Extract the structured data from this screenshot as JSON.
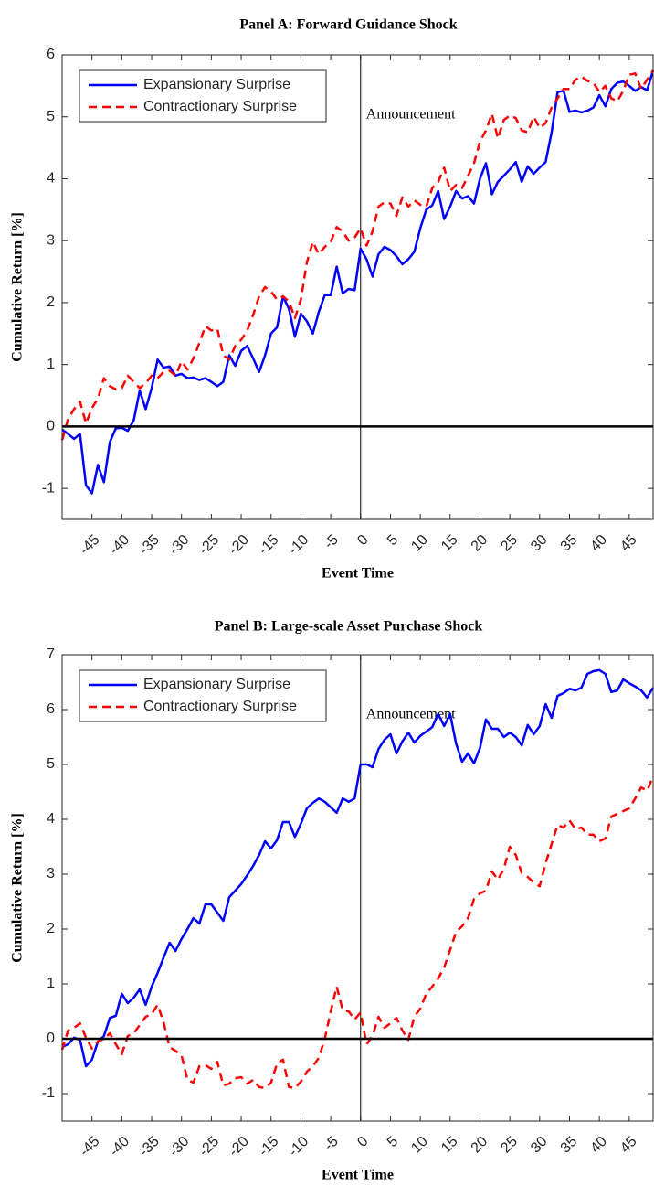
{
  "chart_data": [
    {
      "type": "line",
      "title": "Panel A: Forward Guidance Shock",
      "xlabel": "Event Time",
      "ylabel": "Cumulative Return [%]",
      "annotation": "Announcement",
      "vline_x": 0,
      "hline_y": 0,
      "legend": "upper left",
      "xlim": [
        -50,
        49
      ],
      "ylim": [
        -1.5,
        6
      ],
      "xticks": [
        -45,
        -40,
        -35,
        -30,
        -25,
        -20,
        -15,
        -10,
        -5,
        0,
        5,
        10,
        15,
        20,
        25,
        30,
        35,
        40,
        45
      ],
      "yticks": [
        -1,
        0,
        1,
        2,
        3,
        4,
        5,
        6
      ],
      "x": [
        -50,
        -49,
        -48,
        -47,
        -46,
        -45,
        -44,
        -43,
        -42,
        -41,
        -40,
        -39,
        -38,
        -37,
        -36,
        -35,
        -34,
        -33,
        -32,
        -31,
        -30,
        -29,
        -28,
        -27,
        -26,
        -25,
        -24,
        -23,
        -22,
        -21,
        -20,
        -19,
        -18,
        -17,
        -16,
        -15,
        -14,
        -13,
        -12,
        -11,
        -10,
        -9,
        -8,
        -7,
        -6,
        -5,
        -4,
        -3,
        -2,
        -1,
        0,
        1,
        2,
        3,
        4,
        5,
        6,
        7,
        8,
        9,
        10,
        11,
        12,
        13,
        14,
        15,
        16,
        17,
        18,
        19,
        20,
        21,
        22,
        23,
        24,
        25,
        26,
        27,
        28,
        29,
        30,
        31,
        32,
        33,
        34,
        35,
        36,
        37,
        38,
        39,
        40,
        41,
        42,
        43,
        44,
        45,
        46,
        47,
        48,
        49
      ],
      "series": [
        {
          "name": "Expansionary Surprise",
          "color": "#0000ff",
          "style": "solid",
          "values": [
            -0.05,
            -0.12,
            -0.2,
            -0.12,
            -0.95,
            -1.08,
            -0.62,
            -0.9,
            -0.25,
            -0.03,
            -0.02,
            -0.07,
            0.1,
            0.58,
            0.28,
            0.62,
            1.08,
            0.95,
            0.97,
            0.82,
            0.85,
            0.78,
            0.79,
            0.75,
            0.78,
            0.72,
            0.65,
            0.72,
            1.15,
            0.98,
            1.22,
            1.3,
            1.1,
            0.88,
            1.15,
            1.5,
            1.6,
            2.1,
            1.9,
            1.45,
            1.82,
            1.7,
            1.5,
            1.85,
            2.12,
            2.12,
            2.58,
            2.15,
            2.22,
            2.2,
            2.87,
            2.7,
            2.42,
            2.78,
            2.9,
            2.85,
            2.75,
            2.62,
            2.7,
            2.82,
            3.2,
            3.5,
            3.57,
            3.8,
            3.35,
            3.55,
            3.8,
            3.68,
            3.72,
            3.6,
            4.0,
            4.25,
            3.75,
            3.95,
            4.05,
            4.15,
            4.27,
            3.95,
            4.2,
            4.08,
            4.18,
            4.27,
            4.75,
            5.4,
            5.42,
            5.08,
            5.1,
            5.07,
            5.1,
            5.15,
            5.35,
            5.17,
            5.45,
            5.55,
            5.57,
            5.5,
            5.42,
            5.48,
            5.43,
            5.75
          ]
        },
        {
          "name": "Contractionary Surprise",
          "color": "#ff0000",
          "style": "dashed",
          "values": [
            -0.22,
            0.12,
            0.28,
            0.4,
            0.05,
            0.3,
            0.45,
            0.78,
            0.65,
            0.6,
            0.62,
            0.82,
            0.72,
            0.62,
            0.7,
            0.82,
            0.78,
            0.88,
            0.9,
            0.82,
            1.05,
            0.92,
            1.1,
            1.35,
            1.62,
            1.55,
            1.58,
            1.15,
            1.08,
            1.3,
            1.4,
            1.55,
            1.8,
            2.1,
            2.25,
            2.18,
            2.05,
            2.1,
            2.02,
            1.75,
            2.05,
            2.65,
            2.98,
            2.78,
            2.9,
            2.98,
            3.22,
            3.15,
            3.0,
            3.05,
            3.2,
            2.92,
            3.15,
            3.55,
            3.62,
            3.6,
            3.4,
            3.7,
            3.55,
            3.65,
            3.58,
            3.55,
            3.85,
            3.95,
            4.18,
            3.8,
            3.9,
            3.85,
            4.05,
            4.25,
            4.6,
            4.78,
            5.05,
            4.65,
            4.95,
            5.02,
            4.98,
            4.78,
            4.75,
            5.0,
            4.82,
            4.9,
            5.15,
            5.3,
            5.45,
            5.45,
            5.6,
            5.65,
            5.58,
            5.55,
            5.4,
            5.5,
            5.3,
            5.25,
            5.42,
            5.68,
            5.7,
            5.45,
            5.6,
            5.75
          ]
        }
      ]
    },
    {
      "type": "line",
      "title": "Panel B: Large-scale Asset Purchase Shock",
      "xlabel": "Event Time",
      "ylabel": "Cumulative Return [%]",
      "annotation": "Announcement",
      "vline_x": 0,
      "hline_y": 0,
      "legend": "upper left",
      "xlim": [
        -50,
        49
      ],
      "ylim": [
        -1.5,
        7
      ],
      "xticks": [
        -45,
        -40,
        -35,
        -30,
        -25,
        -20,
        -15,
        -10,
        -5,
        0,
        5,
        10,
        15,
        20,
        25,
        30,
        35,
        40,
        45
      ],
      "yticks": [
        -1,
        0,
        1,
        2,
        3,
        4,
        5,
        6,
        7
      ],
      "x": [
        -50,
        -49,
        -48,
        -47,
        -46,
        -45,
        -44,
        -43,
        -42,
        -41,
        -40,
        -39,
        -38,
        -37,
        -36,
        -35,
        -34,
        -33,
        -32,
        -31,
        -30,
        -29,
        -28,
        -27,
        -26,
        -25,
        -24,
        -23,
        -22,
        -21,
        -20,
        -19,
        -18,
        -17,
        -16,
        -15,
        -14,
        -13,
        -12,
        -11,
        -10,
        -9,
        -8,
        -7,
        -6,
        -5,
        -4,
        -3,
        -2,
        -1,
        0,
        1,
        2,
        3,
        4,
        5,
        6,
        7,
        8,
        9,
        10,
        11,
        12,
        13,
        14,
        15,
        16,
        17,
        18,
        19,
        20,
        21,
        22,
        23,
        24,
        25,
        26,
        27,
        28,
        29,
        30,
        31,
        32,
        33,
        34,
        35,
        36,
        37,
        38,
        39,
        40,
        41,
        42,
        43,
        44,
        45,
        46,
        47,
        48,
        49
      ],
      "series": [
        {
          "name": "Expansionary Surprise",
          "color": "#0000ff",
          "style": "solid",
          "values": [
            -0.15,
            -0.1,
            0.02,
            -0.02,
            -0.5,
            -0.38,
            -0.05,
            0.05,
            0.38,
            0.42,
            0.82,
            0.65,
            0.75,
            0.9,
            0.62,
            0.95,
            1.2,
            1.48,
            1.75,
            1.6,
            1.82,
            2.0,
            2.2,
            2.1,
            2.45,
            2.45,
            2.3,
            2.15,
            2.58,
            2.7,
            2.82,
            2.98,
            3.15,
            3.35,
            3.6,
            3.47,
            3.62,
            3.95,
            3.95,
            3.68,
            3.92,
            4.2,
            4.3,
            4.38,
            4.32,
            4.22,
            4.12,
            4.38,
            4.32,
            4.38,
            5.0,
            5.0,
            4.95,
            5.28,
            5.45,
            5.55,
            5.2,
            5.42,
            5.58,
            5.4,
            5.52,
            5.6,
            5.68,
            5.92,
            5.7,
            5.92,
            5.38,
            5.05,
            5.2,
            5.02,
            5.3,
            5.82,
            5.65,
            5.65,
            5.5,
            5.58,
            5.5,
            5.35,
            5.72,
            5.55,
            5.7,
            6.1,
            5.85,
            6.25,
            6.3,
            6.38,
            6.35,
            6.4,
            6.65,
            6.7,
            6.72,
            6.65,
            6.32,
            6.35,
            6.55,
            6.48,
            6.42,
            6.35,
            6.22,
            6.4
          ]
        },
        {
          "name": "Contractionary Surprise",
          "color": "#ff0000",
          "style": "dashed",
          "values": [
            -0.2,
            0.15,
            0.2,
            0.28,
            0.02,
            -0.18,
            -0.05,
            0.0,
            0.1,
            -0.1,
            -0.28,
            0.05,
            0.1,
            0.25,
            0.4,
            0.45,
            0.62,
            0.3,
            -0.15,
            -0.22,
            -0.3,
            -0.75,
            -0.8,
            -0.5,
            -0.48,
            -0.55,
            -0.42,
            -0.85,
            -0.82,
            -0.72,
            -0.7,
            -0.82,
            -0.75,
            -0.88,
            -0.9,
            -0.8,
            -0.45,
            -0.38,
            -0.88,
            -0.9,
            -0.78,
            -0.6,
            -0.5,
            -0.35,
            0.0,
            0.5,
            0.95,
            0.52,
            0.5,
            0.35,
            0.48,
            -0.1,
            0.05,
            0.4,
            0.2,
            0.28,
            0.38,
            0.15,
            -0.02,
            0.4,
            0.55,
            0.82,
            0.95,
            1.1,
            1.3,
            1.62,
            1.95,
            2.05,
            2.2,
            2.55,
            2.65,
            2.7,
            3.05,
            2.9,
            3.1,
            3.5,
            3.35,
            3.02,
            2.95,
            2.85,
            2.78,
            3.2,
            3.55,
            3.9,
            3.85,
            3.98,
            3.82,
            3.85,
            3.72,
            3.72,
            3.6,
            3.65,
            4.05,
            4.1,
            4.15,
            4.2,
            4.38,
            4.58,
            4.52,
            4.78
          ]
        }
      ]
    }
  ]
}
